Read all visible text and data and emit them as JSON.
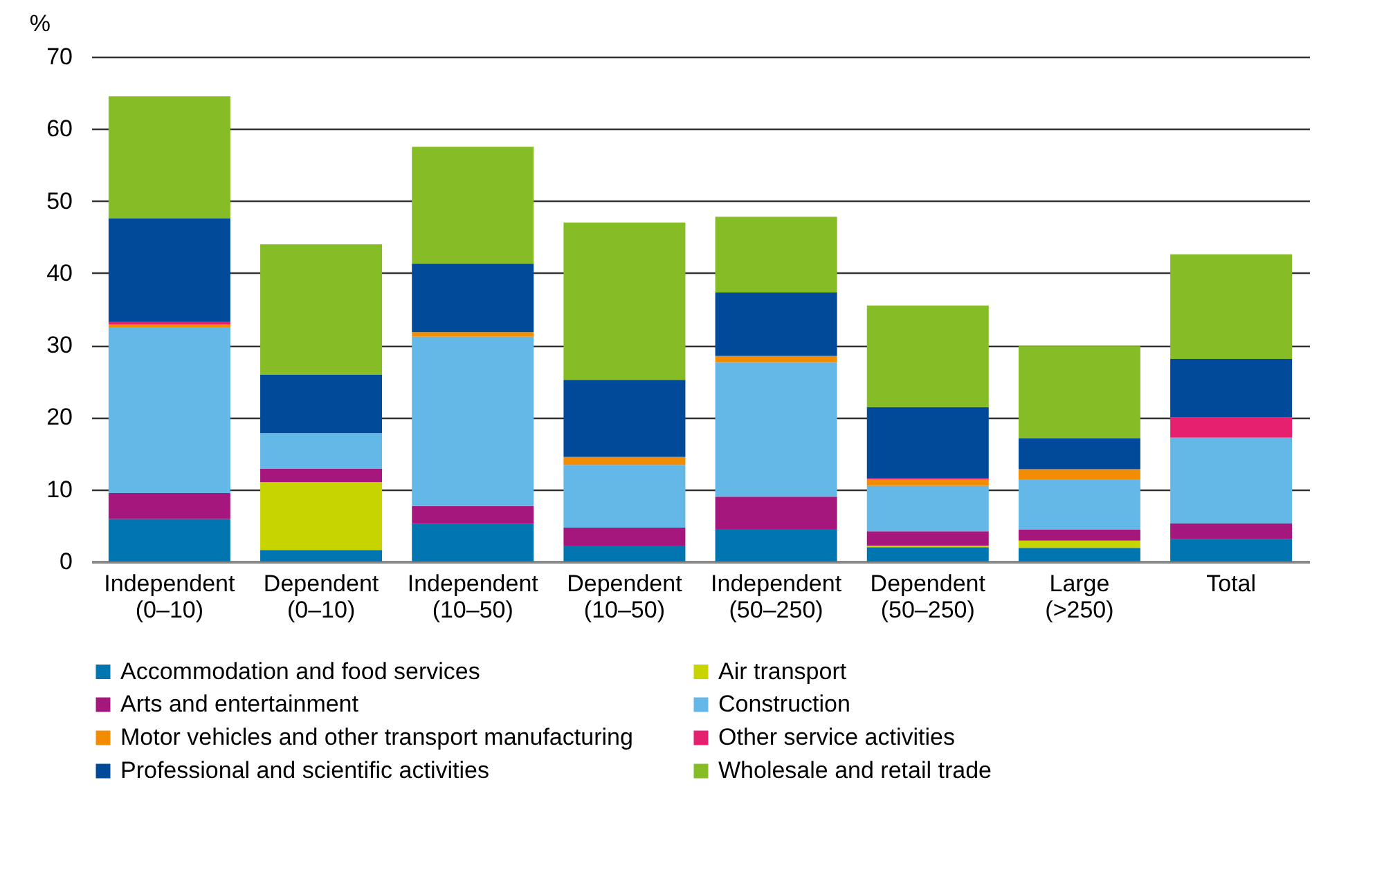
{
  "chart_data": {
    "type": "bar",
    "stacked": true,
    "ylabel": "%",
    "categories": [
      "Independent (0–10)",
      "Dependent (0–10)",
      "Independent (10–50)",
      "Dependent (10–50)",
      "Independent (50–250)",
      "Dependent (50–250)",
      "Large (>250)",
      "Total"
    ],
    "ylim": [
      0,
      70
    ],
    "yticks": [
      0,
      10,
      20,
      30,
      40,
      50,
      60,
      70
    ],
    "grid": "y",
    "legend": "bottom",
    "series": [
      {
        "name": "Accommodation and food services",
        "color": "#0075b0",
        "values": [
          5.9,
          1.6,
          5.2,
          2.2,
          4.5,
          2.0,
          1.9,
          3.1
        ]
      },
      {
        "name": "Air transport",
        "color": "#c8d400",
        "values": [
          0,
          9.4,
          0,
          0,
          0,
          0.2,
          1.0,
          0
        ]
      },
      {
        "name": "Arts and entertainment",
        "color": "#a6177e",
        "values": [
          3.6,
          1.9,
          2.5,
          2.5,
          4.5,
          2.0,
          1.5,
          2.2
        ]
      },
      {
        "name": "Construction",
        "color": "#63b8e8",
        "values": [
          23.0,
          4.9,
          23.5,
          8.7,
          18.6,
          6.3,
          7.0,
          11.9
        ]
      },
      {
        "name": "Motor vehicles and other transport manufacturing",
        "color": "#f28c00",
        "values": [
          0.4,
          0,
          0.6,
          1.1,
          0.9,
          0.9,
          1.4,
          0
        ]
      },
      {
        "name": "Other service activities",
        "color": "#e6206e",
        "values": [
          0.3,
          0,
          0,
          0,
          0,
          0.2,
          0,
          2.8
        ]
      },
      {
        "name": "Professional and scientific activities",
        "color": "#004a99",
        "values": [
          14.4,
          8.1,
          9.5,
          10.7,
          8.8,
          9.8,
          4.3,
          8.1
        ]
      },
      {
        "name": "Wholesale and retail trade",
        "color": "#86bc25",
        "values": [
          16.9,
          18.1,
          16.2,
          21.8,
          10.5,
          14.1,
          12.8,
          14.5
        ]
      }
    ]
  }
}
